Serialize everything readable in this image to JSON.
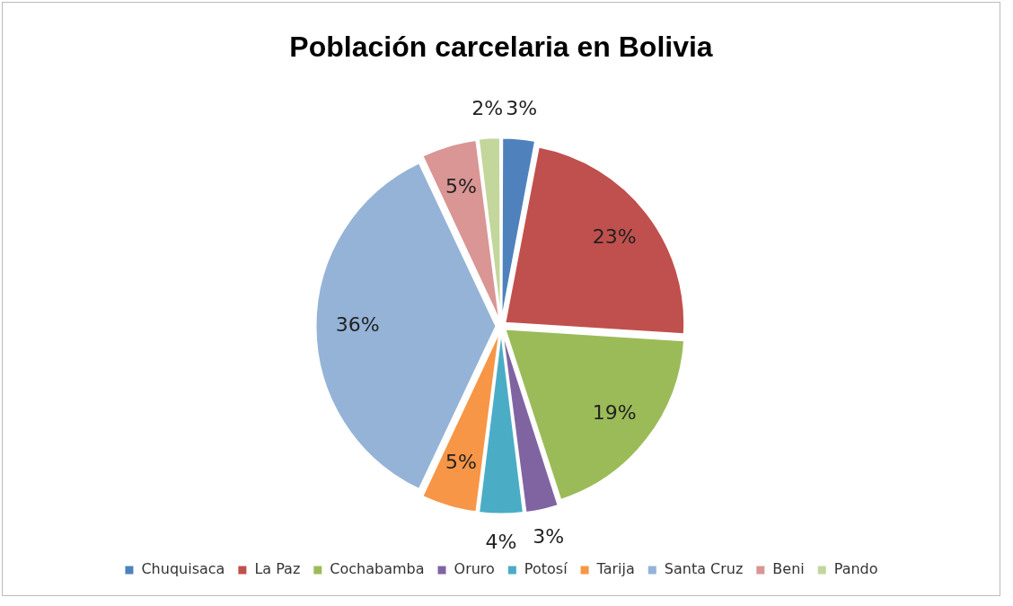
{
  "chart_data": {
    "type": "pie",
    "title": "Población carcelaria en Bolivia",
    "categories": [
      "Chuquisaca",
      "La Paz",
      "Cochabamba",
      "Oruro",
      "Potosí",
      "Tarija",
      "Santa Cruz",
      "Beni",
      "Pando"
    ],
    "values": [
      3,
      23,
      19,
      3,
      4,
      5,
      36,
      5,
      2
    ],
    "value_labels": [
      "3%",
      "23%",
      "19%",
      "3%",
      "4%",
      "5%",
      "36%",
      "5%",
      "2%"
    ],
    "colors": [
      "#4f81bd",
      "#c0504d",
      "#9bbb59",
      "#8064a2",
      "#4bacc6",
      "#f79646",
      "#95b3d7",
      "#d99694",
      "#c3d69b"
    ],
    "legend": "bottom"
  }
}
